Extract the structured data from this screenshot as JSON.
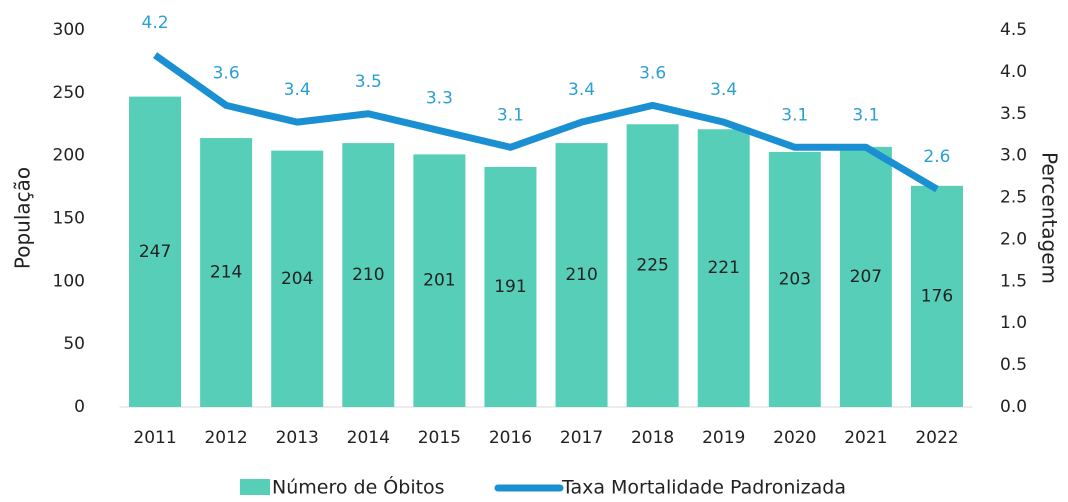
{
  "chart_data": {
    "type": "bar",
    "categories": [
      "2011",
      "2012",
      "2013",
      "2014",
      "2015",
      "2016",
      "2017",
      "2018",
      "2019",
      "2020",
      "2021",
      "2022"
    ],
    "series": [
      {
        "name": "Número de Óbitos",
        "type": "bar",
        "color": "#57cfb8",
        "values": [
          247,
          214,
          204,
          210,
          201,
          191,
          210,
          225,
          221,
          203,
          207,
          176
        ]
      },
      {
        "name": "Taxa Mortalidade Padronizada",
        "type": "line",
        "axis": "y2",
        "color": "#1a8fd1",
        "values": [
          4.2,
          3.6,
          3.4,
          3.5,
          3.3,
          3.1,
          3.4,
          3.6,
          3.4,
          3.1,
          3.1,
          2.6
        ]
      }
    ],
    "ylabel": "População",
    "y2label": "Percentagem",
    "ylim": [
      0,
      300
    ],
    "yticks": [
      0,
      50,
      100,
      150,
      200,
      250,
      300
    ],
    "y2lim": [
      0,
      4.5
    ],
    "y2ticks": [
      {
        "value": 0,
        "label": "0.0"
      },
      0.5,
      {
        "value": 1,
        "label": "1.0"
      },
      1.5,
      {
        "value": 2,
        "label": "2.0"
      },
      2.5,
      {
        "value": 3,
        "label": "3.0"
      },
      3.5,
      {
        "value": 4,
        "label": "4.0"
      },
      4.5
    ],
    "legend": "bottom"
  }
}
